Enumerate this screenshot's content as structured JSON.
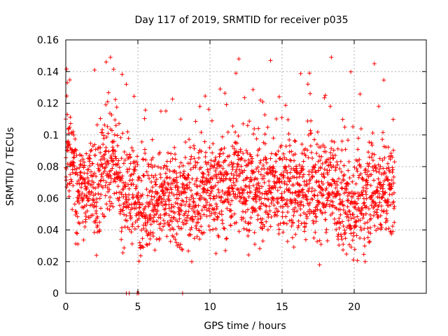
{
  "chart_data": {
    "type": "scatter",
    "title": "Day 117 of 2019, SRMTID for receiver p035",
    "xlabel": "GPS time / hours",
    "ylabel": "SRMTID / TECUs",
    "xlim": [
      0,
      25
    ],
    "ylim": [
      0,
      0.16
    ],
    "xticks": [
      0,
      5,
      10,
      15,
      20
    ],
    "xtick_labels": [
      "0",
      "5",
      "10",
      "15",
      "20"
    ],
    "yticks": [
      0,
      0.02,
      0.04,
      0.06,
      0.08,
      0.1,
      0.12,
      0.14,
      0.16
    ],
    "ytick_labels": [
      "0",
      "0.02",
      "0.04",
      "0.06",
      "0.08",
      "0.1",
      "0.12",
      "0.14",
      "0.16"
    ],
    "grid": true,
    "marker": "+",
    "color": "#ff0000",
    "x_data_end": 22.8,
    "zero_value_points_x": [
      4.2,
      4.4,
      4.95,
      5.05,
      8.1
    ],
    "series": [
      {
        "name": "SRMTID",
        "x": [
          0.0,
          0.1,
          0.1,
          0.2,
          0.3,
          0.5,
          0.8,
          1.0,
          1.3,
          1.6,
          2.0,
          2.1,
          2.4,
          2.8,
          2.9,
          3.1,
          3.3,
          3.6,
          4.0,
          4.2,
          4.5,
          4.8,
          5.1,
          5.4,
          5.8,
          6.0,
          6.3,
          6.6,
          6.9,
          7.2,
          7.5,
          7.9,
          8.2,
          8.6,
          9.0,
          9.3,
          9.6,
          10.0,
          10.4,
          10.8,
          11.1,
          11.5,
          11.8,
          12.0,
          12.3,
          12.7,
          13.1,
          13.5,
          13.9,
          14.2,
          14.4,
          14.7,
          15.1,
          15.5,
          15.9,
          16.2,
          16.6,
          16.9,
          17.3,
          17.6,
          18.0,
          18.4,
          18.8,
          19.2,
          19.6,
          20.0,
          20.4,
          20.8,
          21.2,
          21.4,
          21.7,
          22.0,
          22.4,
          22.8
        ],
        "y": [
          0.11,
          0.133,
          0.092,
          0.101,
          0.081,
          0.068,
          0.058,
          0.076,
          0.055,
          0.071,
          0.141,
          0.052,
          0.092,
          0.146,
          0.121,
          0.149,
          0.088,
          0.073,
          0.061,
          0.132,
          0.047,
          0.078,
          0.054,
          0.041,
          0.064,
          0.097,
          0.072,
          0.115,
          0.058,
          0.043,
          0.062,
          0.029,
          0.077,
          0.055,
          0.083,
          0.118,
          0.066,
          0.049,
          0.074,
          0.091,
          0.059,
          0.068,
          0.139,
          0.148,
          0.107,
          0.061,
          0.052,
          0.122,
          0.076,
          0.147,
          0.098,
          0.065,
          0.088,
          0.071,
          0.054,
          0.081,
          0.062,
          0.139,
          0.077,
          0.018,
          0.125,
          0.069,
          0.083,
          0.058,
          0.046,
          0.063,
          0.052,
          0.071,
          0.095,
          0.145,
          0.118,
          0.066,
          0.041,
          0.083
        ]
      }
    ]
  }
}
